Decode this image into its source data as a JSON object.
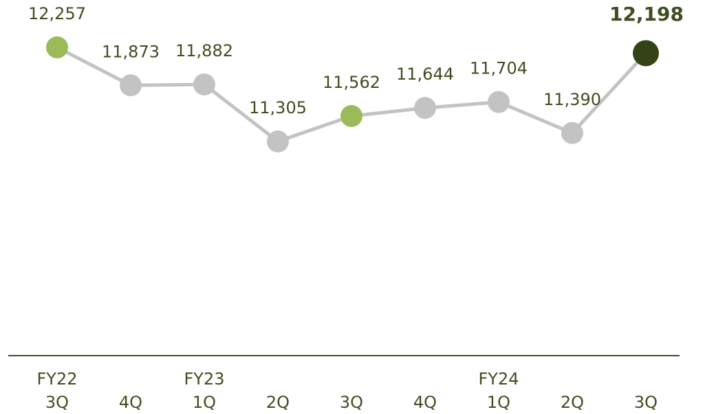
{
  "chart_data": {
    "type": "line",
    "categories": [
      "3Q",
      "4Q",
      "1Q",
      "2Q",
      "3Q",
      "4Q",
      "1Q",
      "2Q",
      "3Q"
    ],
    "category_groups": [
      "FY22",
      null,
      "FY23",
      null,
      null,
      null,
      "FY24",
      null,
      null
    ],
    "values": [
      12257,
      11873,
      11882,
      11305,
      11562,
      11644,
      11704,
      11390,
      12198
    ],
    "value_labels": [
      "12,257",
      "11,873",
      "11,882",
      "11,305",
      "11,562",
      "11,644",
      "11,704",
      "11,390",
      "12,198"
    ],
    "point_colors": [
      "#9bbb59",
      "#c3c3c3",
      "#c3c3c3",
      "#c3c3c3",
      "#9bbb59",
      "#c3c3c3",
      "#c3c3c3",
      "#c3c3c3",
      "#354216"
    ],
    "bold_labels": [
      false,
      false,
      false,
      false,
      false,
      false,
      false,
      false,
      true
    ],
    "line_color": "#c3c3c3",
    "label_color": "#3f4d20",
    "ylim": [
      9200,
      12500
    ]
  }
}
